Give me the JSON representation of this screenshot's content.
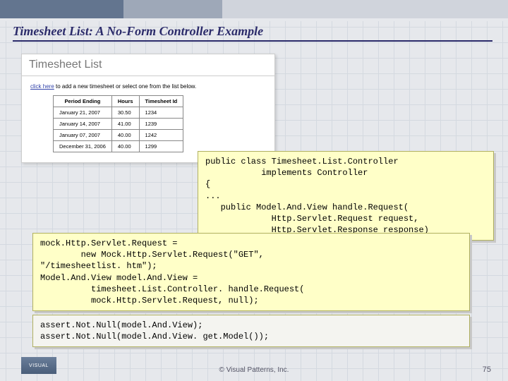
{
  "slide": {
    "title": "Timesheet List: A No-Form Controller Example",
    "footer": "© Visual Patterns, Inc.",
    "page_number": "75",
    "logo_text": "VISUAL"
  },
  "panel": {
    "heading": "Timesheet List",
    "hint_link": "click here",
    "hint_rest": " to add a new timesheet or select one from the list below.",
    "columns": [
      "Period Ending",
      "Hours",
      "Timesheet Id"
    ],
    "rows": [
      [
        "January 21, 2007",
        "30.50",
        "1234"
      ],
      [
        "January 14, 2007",
        "41.00",
        "1239"
      ],
      [
        "January 07, 2007",
        "40.00",
        "1242"
      ],
      [
        "December 31, 2006",
        "40.00",
        "1299"
      ]
    ]
  },
  "code": {
    "block1": "public class Timesheet.List.Controller\n           implements Controller\n{\n...\n   public Model.And.View handle.Request(\n             Http.Servlet.Request request,\n             Http.Servlet.Response response)",
    "block2": "mock.Http.Servlet.Request =\n        new Mock.Http.Servlet.Request(\"GET\",\n\"/timesheetlist. htm\");\nModel.And.View model.And.View =\n          timesheet.List.Controller. handle.Request(\n          mock.Http.Servlet.Request, null);",
    "block3": "assert.Not.Null(model.And.View);\nassert.Not.Null(model.And.View. get.Model());"
  },
  "colors": {
    "bg": "#e6e8ec",
    "accent_dark": "#63758f",
    "accent_mid": "#9ea8b8",
    "title": "#2b2b6a",
    "code_bg": "#ffffc8",
    "code_plain_bg": "#f4f4f0",
    "grid": "#d4d9e0"
  }
}
